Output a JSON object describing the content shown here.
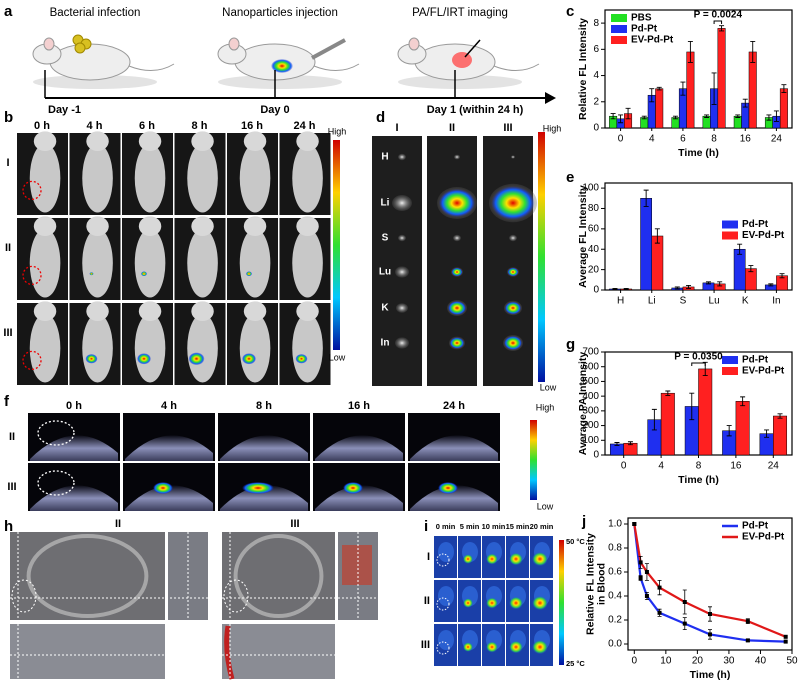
{
  "panels": {
    "a": {
      "label": "a",
      "steps": [
        "Bacterial infection",
        "Nanoparticles injection",
        "PA/FL/IRT imaging"
      ],
      "days": [
        "Day -1",
        "Day 0",
        "Day 1 (within 24 h)"
      ]
    },
    "b": {
      "label": "b",
      "times": [
        "0 h",
        "4 h",
        "6 h",
        "8 h",
        "16 h",
        "24 h"
      ],
      "rows": [
        "I",
        "II",
        "III"
      ],
      "scale": [
        "High",
        "Low"
      ]
    },
    "d": {
      "label": "d",
      "columns": [
        "I",
        "II",
        "III"
      ],
      "organs": [
        "H",
        "Li",
        "S",
        "Lu",
        "K",
        "In"
      ],
      "scale": [
        "High",
        "Low"
      ]
    },
    "f": {
      "label": "f",
      "times": [
        "0 h",
        "4 h",
        "8 h",
        "16 h",
        "24 h"
      ],
      "rows": [
        "II",
        "III"
      ],
      "scale": [
        "High",
        "Low"
      ]
    },
    "h": {
      "label": "h",
      "columns": [
        "II",
        "III"
      ]
    },
    "i": {
      "label": "i",
      "times": [
        "0 min",
        "5 min",
        "10 min",
        "15 min",
        "20 min"
      ],
      "rows": [
        "I",
        "II",
        "III"
      ],
      "scale": [
        "50 °C",
        "25 °C"
      ]
    }
  },
  "chart_data": [
    {
      "type": "bar",
      "panel_label": "c",
      "xlabel": "Time (h)",
      "ylabel": [
        "Relative FL Intensity"
      ],
      "categories": [
        "0",
        "4",
        "6",
        "8",
        "16",
        "24"
      ],
      "series": [
        {
          "name": "PBS",
          "color": "#22e022",
          "values": [
            0.9,
            0.8,
            0.8,
            0.9,
            0.9,
            0.8
          ],
          "errors": [
            0.2,
            0.1,
            0.1,
            0.1,
            0.1,
            0.2
          ]
        },
        {
          "name": "Pd-Pt",
          "color": "#1f2ff0",
          "values": [
            0.7,
            2.5,
            3.0,
            3.0,
            1.9,
            0.9
          ],
          "errors": [
            0.3,
            0.5,
            0.5,
            1.2,
            0.3,
            0.4
          ]
        },
        {
          "name": "EV-Pd-Pt",
          "color": "#ff2020",
          "values": [
            1.1,
            3.0,
            5.8,
            7.6,
            5.8,
            3.0
          ],
          "errors": [
            0.4,
            0.1,
            0.8,
            0.2,
            0.8,
            0.3
          ]
        }
      ],
      "ylim": [
        0,
        9
      ],
      "yticks": [
        0,
        2,
        4,
        6,
        8
      ],
      "legend": "top-left",
      "annotations": [
        "P = 0.0024"
      ]
    },
    {
      "type": "bar",
      "panel_label": "e",
      "ylabel": [
        "Average FL Intensity"
      ],
      "categories": [
        "H",
        "Li",
        "S",
        "Lu",
        "K",
        "In"
      ],
      "series": [
        {
          "name": "Pd-Pt",
          "color": "#1f2ff0",
          "values": [
            1,
            90,
            2,
            7,
            40,
            5
          ],
          "errors": [
            0.5,
            8,
            1,
            1,
            5,
            1
          ]
        },
        {
          "name": "EV-Pd-Pt",
          "color": "#ff2020",
          "values": [
            1,
            53,
            3,
            6,
            21,
            14
          ],
          "errors": [
            0.5,
            7,
            1.5,
            2,
            3,
            2
          ]
        }
      ],
      "ylim": [
        0,
        105
      ],
      "yticks": [
        0,
        20,
        40,
        60,
        80,
        100
      ],
      "legend": "center-right"
    },
    {
      "type": "bar",
      "panel_label": "g",
      "xlabel": "Time (h)",
      "ylabel": [
        "Average PA Intensity"
      ],
      "categories": [
        "0",
        "4",
        "8",
        "16",
        "24"
      ],
      "series": [
        {
          "name": "Pd-Pt",
          "color": "#1f2ff0",
          "values": [
            75,
            240,
            330,
            165,
            145
          ],
          "errors": [
            10,
            70,
            90,
            35,
            25
          ]
        },
        {
          "name": "EV-Pd-Pt",
          "color": "#ff2020",
          "values": [
            80,
            420,
            585,
            365,
            265
          ],
          "errors": [
            10,
            15,
            45,
            30,
            15
          ]
        }
      ],
      "ylim": [
        0,
        700
      ],
      "yticks": [
        0,
        100,
        200,
        300,
        400,
        500,
        600,
        700
      ],
      "legend": "top-right",
      "annotations": [
        "P = 0.0350"
      ]
    },
    {
      "type": "line",
      "panel_label": "j",
      "xlabel": "Time (h)",
      "ylabel": [
        "Relative FL Intensity",
        "in Blood"
      ],
      "x": [
        0,
        2,
        4,
        8,
        16,
        24,
        36,
        48
      ],
      "series": [
        {
          "name": "Pd-Pt",
          "color": "#1f2ff0",
          "values": [
            1.0,
            0.55,
            0.4,
            0.26,
            0.17,
            0.08,
            0.03,
            0.02
          ],
          "errors": [
            0,
            0.02,
            0.03,
            0.03,
            0.05,
            0.04,
            0.01,
            0
          ]
        },
        {
          "name": "EV-Pd-Pt",
          "color": "#e01818",
          "values": [
            1.0,
            0.68,
            0.6,
            0.47,
            0.35,
            0.25,
            0.19,
            0.06
          ],
          "errors": [
            0,
            0.05,
            0.07,
            0.06,
            0.1,
            0.06,
            0.02,
            0
          ]
        }
      ],
      "xlim": [
        -2,
        50
      ],
      "xticks": [
        0,
        10,
        20,
        30,
        40,
        50
      ],
      "ylim": [
        -0.05,
        1.05
      ],
      "yticks": [
        {
          "value": 0,
          "label": "0.0"
        },
        0.2,
        0.4,
        0.6,
        0.8,
        {
          "value": 1,
          "label": "1.0"
        }
      ],
      "legend": "top-right"
    }
  ]
}
